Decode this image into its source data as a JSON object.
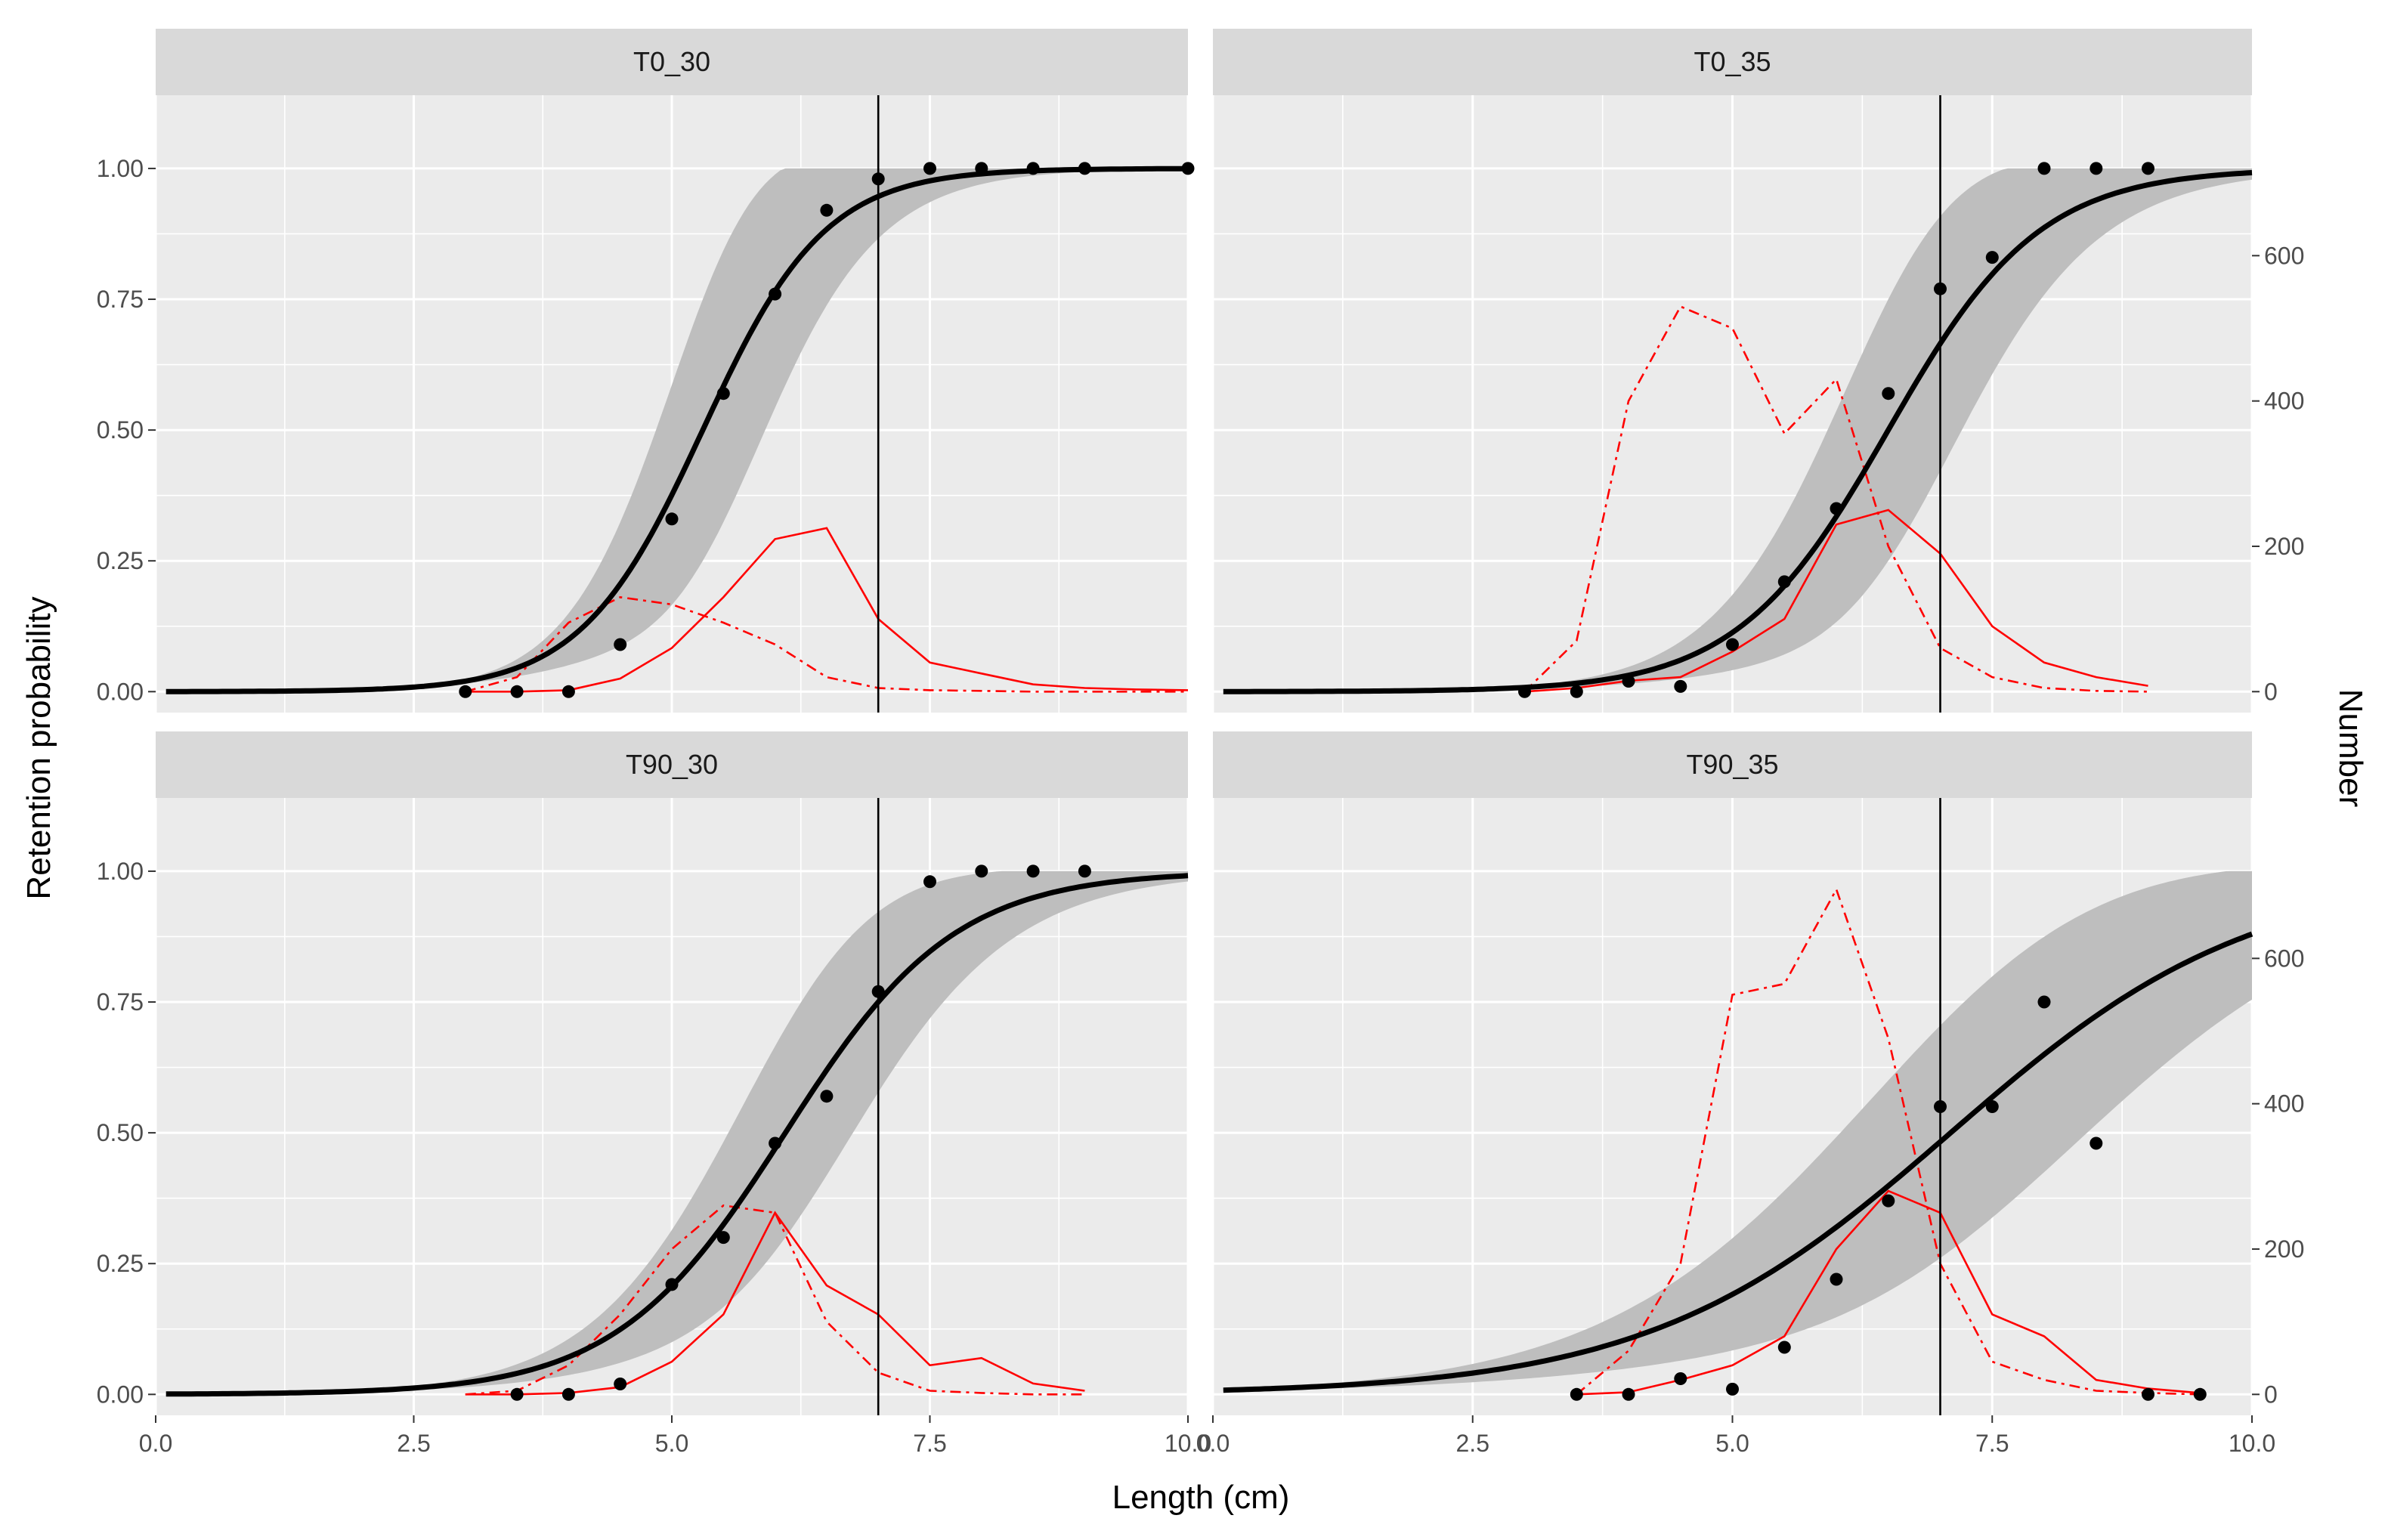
{
  "chart_data": {
    "type": "line",
    "xlabel": "Length (cm)",
    "ylabel": "Retention probability",
    "y2label": "Number",
    "xlim": [
      0,
      10
    ],
    "ylim": [
      -0.04,
      1.14
    ],
    "y2lim": [
      -28.8,
      820.8
    ],
    "x_ticks": [
      "0.0",
      "2.5",
      "5.0",
      "7.5",
      "10.0"
    ],
    "y_ticks": [
      "0.00",
      "0.25",
      "0.50",
      "0.75",
      "1.00"
    ],
    "y2_ticks": [
      "0",
      "200",
      "400",
      "600"
    ],
    "colors": {
      "fit": "#000000",
      "band": "#bebebe",
      "counts": "#ff0000",
      "panel_bg": "#ebebeb",
      "strip_bg": "#d9d9d9",
      "grid": "#ffffff"
    },
    "panels": [
      {
        "title": "T0_30",
        "l50": 5.3,
        "sr": 1.3,
        "band_half": [
          1,
          0.45,
          0.3
        ],
        "vline": 7.0,
        "points": [
          [
            3,
            0
          ],
          [
            3.5,
            0
          ],
          [
            4,
            0
          ],
          [
            4.5,
            0.09
          ],
          [
            5,
            0.33
          ],
          [
            5.5,
            0.57
          ],
          [
            6,
            0.76
          ],
          [
            6.5,
            0.92
          ],
          [
            7,
            0.98
          ],
          [
            7.5,
            1
          ],
          [
            8,
            1
          ],
          [
            8.5,
            1
          ],
          [
            9,
            1
          ],
          [
            10,
            1
          ]
        ],
        "solid": [
          [
            3,
            0
          ],
          [
            3.5,
            0
          ],
          [
            4,
            2
          ],
          [
            4.5,
            18
          ],
          [
            5,
            60
          ],
          [
            5.5,
            130
          ],
          [
            6,
            210
          ],
          [
            6.5,
            225
          ],
          [
            7,
            100
          ],
          [
            7.5,
            40
          ],
          [
            8,
            25
          ],
          [
            8.5,
            10
          ],
          [
            9,
            5
          ],
          [
            9.5,
            3
          ],
          [
            10,
            2
          ]
        ],
        "dashed": [
          [
            3,
            0
          ],
          [
            3.5,
            20
          ],
          [
            4,
            95
          ],
          [
            4.5,
            130
          ],
          [
            5,
            120
          ],
          [
            5.5,
            95
          ],
          [
            6,
            65
          ],
          [
            6.5,
            20
          ],
          [
            7,
            5
          ],
          [
            7.5,
            2
          ],
          [
            8,
            1
          ],
          [
            8.5,
            0
          ],
          [
            9,
            0
          ],
          [
            10,
            0
          ]
        ]
      },
      {
        "title": "T0_35",
        "l50": 6.5,
        "sr": 1.6,
        "band_half": [
          1,
          0.3,
          0.25
        ],
        "vline": 7.0,
        "points": [
          [
            3,
            0
          ],
          [
            3.5,
            0
          ],
          [
            4,
            0.02
          ],
          [
            4.5,
            0.01
          ],
          [
            5,
            0.09
          ],
          [
            5.5,
            0.21
          ],
          [
            6,
            0.35
          ],
          [
            6.5,
            0.57
          ],
          [
            7,
            0.77
          ],
          [
            7.5,
            0.83
          ],
          [
            8,
            1
          ],
          [
            8.5,
            1
          ],
          [
            9,
            1
          ]
        ],
        "solid": [
          [
            3,
            0
          ],
          [
            3.5,
            5
          ],
          [
            4,
            15
          ],
          [
            4.5,
            20
          ],
          [
            5,
            55
          ],
          [
            5.5,
            100
          ],
          [
            6,
            230
          ],
          [
            6.5,
            250
          ],
          [
            7,
            190
          ],
          [
            7.5,
            90
          ],
          [
            8,
            40
          ],
          [
            8.5,
            20
          ],
          [
            9,
            8
          ]
        ],
        "dashed": [
          [
            3,
            0
          ],
          [
            3.5,
            70
          ],
          [
            4,
            400
          ],
          [
            4.5,
            530
          ],
          [
            5,
            500
          ],
          [
            5.5,
            355
          ],
          [
            6,
            430
          ],
          [
            6.5,
            200
          ],
          [
            7,
            60
          ],
          [
            7.5,
            20
          ],
          [
            8,
            5
          ],
          [
            8.5,
            1
          ],
          [
            9,
            0
          ]
        ]
      },
      {
        "title": "T90_30",
        "l50": 6.1,
        "sr": 1.8,
        "band_half": [
          0.8,
          0.3,
          0.25
        ],
        "vline": 7.0,
        "points": [
          [
            3.5,
            0
          ],
          [
            4,
            0
          ],
          [
            4.5,
            0.02
          ],
          [
            5,
            0.21
          ],
          [
            5.5,
            0.3
          ],
          [
            6,
            0.48
          ],
          [
            6.5,
            0.57
          ],
          [
            7,
            0.77
          ],
          [
            7.5,
            0.98
          ],
          [
            8,
            1
          ],
          [
            8.5,
            1
          ],
          [
            9,
            1
          ]
        ],
        "solid": [
          [
            3,
            0
          ],
          [
            3.5,
            0
          ],
          [
            4,
            2
          ],
          [
            4.5,
            10
          ],
          [
            5,
            45
          ],
          [
            5.5,
            110
          ],
          [
            6,
            250
          ],
          [
            6.5,
            150
          ],
          [
            7,
            110
          ],
          [
            7.5,
            40
          ],
          [
            8,
            50
          ],
          [
            8.5,
            15
          ],
          [
            9,
            5
          ]
        ],
        "dashed": [
          [
            3,
            0
          ],
          [
            3.5,
            5
          ],
          [
            4,
            40
          ],
          [
            4.5,
            110
          ],
          [
            5,
            200
          ],
          [
            5.5,
            260
          ],
          [
            6,
            250
          ],
          [
            6.5,
            100
          ],
          [
            7,
            30
          ],
          [
            7.5,
            5
          ],
          [
            8,
            2
          ],
          [
            8.5,
            0
          ],
          [
            9,
            0
          ]
        ]
      },
      {
        "title": "T90_35",
        "l50": 7.1,
        "sr": 3.2,
        "band_half": [
          0.9,
          0.35,
          0.3
        ],
        "vline": 7.0,
        "points": [
          [
            3.5,
            0
          ],
          [
            4,
            0
          ],
          [
            4.5,
            0.03
          ],
          [
            5,
            0.01
          ],
          [
            5.5,
            0.09
          ],
          [
            6,
            0.22
          ],
          [
            6.5,
            0.37
          ],
          [
            7,
            0.55
          ],
          [
            7.5,
            0.55
          ],
          [
            8,
            0.75
          ],
          [
            8.5,
            0.48
          ],
          [
            9,
            0
          ],
          [
            9.5,
            0
          ]
        ],
        "solid": [
          [
            3.5,
            0
          ],
          [
            4,
            3
          ],
          [
            4.5,
            20
          ],
          [
            5,
            40
          ],
          [
            5.5,
            80
          ],
          [
            6,
            200
          ],
          [
            6.5,
            280
          ],
          [
            7,
            250
          ],
          [
            7.5,
            110
          ],
          [
            8,
            80
          ],
          [
            8.5,
            20
          ],
          [
            9,
            8
          ],
          [
            9.5,
            2
          ]
        ],
        "dashed": [
          [
            3.5,
            0
          ],
          [
            4,
            60
          ],
          [
            4.5,
            180
          ],
          [
            5,
            550
          ],
          [
            5.5,
            565
          ],
          [
            6,
            695
          ],
          [
            6.5,
            490
          ],
          [
            7,
            180
          ],
          [
            7.5,
            45
          ],
          [
            8,
            20
          ],
          [
            8.5,
            5
          ],
          [
            9,
            2
          ],
          [
            9.5,
            0
          ]
        ]
      }
    ]
  }
}
